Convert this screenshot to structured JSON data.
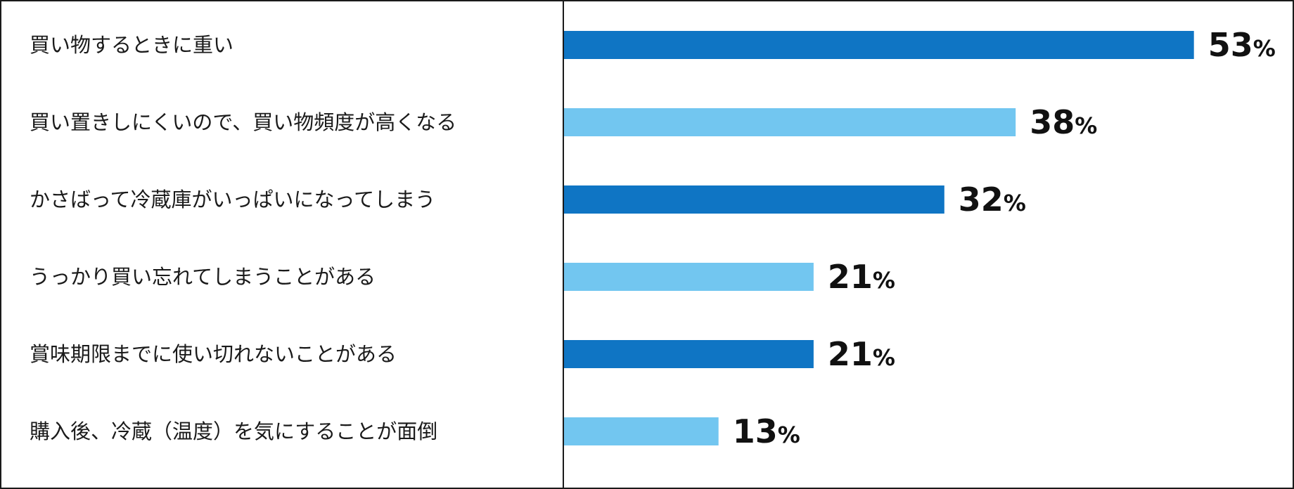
{
  "chart_data": {
    "type": "bar",
    "orientation": "horizontal",
    "categories": [
      "買い物するときに重い",
      "買い置きしにくいので、買い物頻度が高くなる",
      "かさばって冷蔵庫がいっぱいになってしまう",
      "うっかり買い忘れてしまうことがある",
      "賞味期限までに使い切れないことがある",
      "購入後、冷蔵（温度）を気にすることが面倒"
    ],
    "values": [
      53,
      38,
      32,
      21,
      21,
      13
    ],
    "value_labels": [
      "53",
      "38",
      "32",
      "21",
      "21",
      "13"
    ],
    "unit": "%",
    "bar_colors": [
      "#0f75c4",
      "#72c6f0",
      "#0f75c4",
      "#72c6f0",
      "#0f75c4",
      "#72c6f0"
    ],
    "xlim": [
      0,
      100
    ],
    "title": "",
    "xlabel": "",
    "ylabel": "",
    "grid": false,
    "legend": "none"
  }
}
